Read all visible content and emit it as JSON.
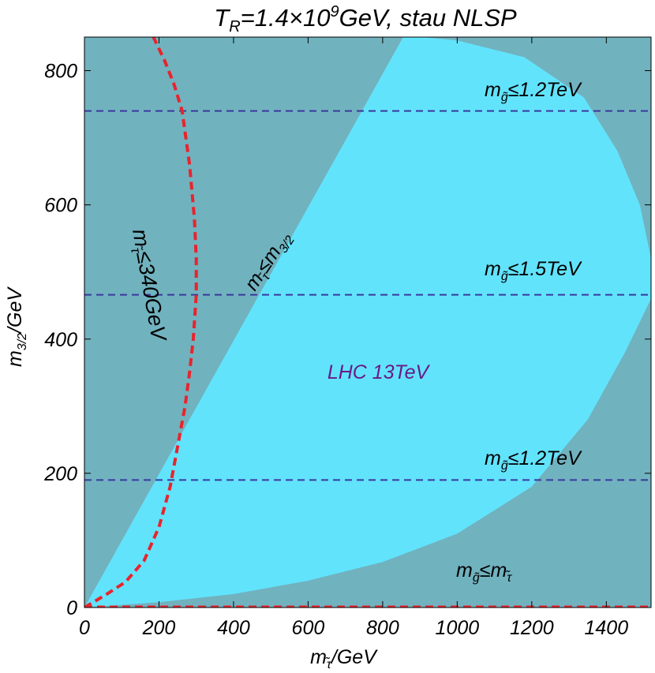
{
  "title": {
    "prefix": "T",
    "prefix_sub": "R",
    "mid": "=1.4×10",
    "exp": "9",
    "suffix": "GeV, stau NLSP"
  },
  "colors": {
    "background_region": "#71b2bf",
    "allowed_region": "#62e3fc",
    "dashed_gluino": "#3a3a9e",
    "dashed_stau_bound": "#e8242c",
    "lhc_label": "#6a1a87",
    "text": "#000000"
  },
  "axes": {
    "x": {
      "min": 0,
      "max": 1520,
      "ticks": [
        0,
        200,
        400,
        600,
        800,
        1000,
        1200,
        1400
      ],
      "tick_labels": [
        "0",
        "200",
        "400",
        "600",
        "800",
        "1000",
        "1200",
        "1400"
      ]
    },
    "y": {
      "min": 0,
      "max": 850,
      "ticks": [
        0,
        200,
        400,
        600,
        800
      ],
      "tick_labels": [
        "0",
        "200",
        "400",
        "600",
        "800"
      ]
    },
    "xlabel": {
      "main": "m",
      "sub": "τ̃",
      "rest": "/GeV"
    },
    "ylabel": {
      "main": "m",
      "sub": "3/2",
      "rest": "/GeV"
    }
  },
  "labels": {
    "gluino_top": {
      "main": "m",
      "sub": "g̃",
      "rest": "≤1.2TeV"
    },
    "gluino_mid": {
      "main": "m",
      "sub": "g̃",
      "rest": "≤1.5TeV"
    },
    "gluino_low": {
      "main": "m",
      "sub": "g̃",
      "rest": "≤1.2TeV"
    },
    "gluino_stau": {
      "main": "m",
      "sub1": "g̃",
      "mid": "≤m",
      "sub2": "τ̃"
    },
    "stau_gravitino": {
      "main": "m",
      "sub1": "τ̃",
      "mid": "≤m",
      "sub2": "3/2"
    },
    "stau_bound": {
      "main": "m",
      "sub": "τ̃",
      "rest": "≤340GeV"
    },
    "lhc": "LHC 13TeV"
  },
  "chart_data": {
    "type": "area",
    "title": "T_R=1.4×10^9 GeV, stau NLSP",
    "xlabel": "m_stau/GeV",
    "ylabel": "m_3/2/GeV",
    "xlim": [
      0,
      1520
    ],
    "ylim": [
      0,
      850
    ],
    "regions": [
      {
        "name": "LHC 13TeV allowed region",
        "boundary": [
          [
            0,
            0
          ],
          [
            200,
            8
          ],
          [
            400,
            20
          ],
          [
            600,
            40
          ],
          [
            800,
            68
          ],
          [
            1000,
            110
          ],
          [
            1200,
            180
          ],
          [
            1350,
            280
          ],
          [
            1450,
            380
          ],
          [
            1520,
            460
          ],
          [
            1520,
            520
          ],
          [
            1490,
            600
          ],
          [
            1430,
            680
          ],
          [
            1340,
            760
          ],
          [
            1180,
            820
          ],
          [
            1000,
            845
          ],
          [
            905,
            850
          ],
          [
            855,
            850
          ],
          [
            0,
            0
          ]
        ]
      }
    ],
    "series": [
      {
        "name": "m_gluino ≤ 1.2TeV (upper)",
        "style": "dashed",
        "x": [
          0,
          1520
        ],
        "y": [
          740,
          740
        ]
      },
      {
        "name": "m_gluino ≤ 1.5TeV",
        "style": "dashed",
        "x": [
          0,
          1520
        ],
        "y": [
          466,
          466
        ]
      },
      {
        "name": "m_gluino ≤ 1.2TeV (lower)",
        "style": "dashed",
        "x": [
          0,
          1520
        ],
        "y": [
          190,
          190
        ]
      },
      {
        "name": "m_stau ≤ 340GeV",
        "style": "dotted-thick",
        "x": [
          0,
          60,
          110,
          160,
          200,
          230,
          250,
          270,
          282,
          292,
          300,
          300,
          295,
          282,
          262,
          240,
          215,
          185
        ],
        "y": [
          0,
          20,
          38,
          70,
          120,
          180,
          240,
          300,
          350,
          400,
          466,
          520,
          580,
          660,
          740,
          780,
          815,
          850
        ]
      },
      {
        "name": "m_stau ≤ m_3/2 boundary",
        "style": "none",
        "x": [
          0,
          855
        ],
        "y": [
          0,
          850
        ]
      },
      {
        "name": "x-axis dashed bound",
        "style": "dotted-thick",
        "x": [
          0,
          1520
        ],
        "y": [
          0,
          0
        ]
      }
    ]
  }
}
